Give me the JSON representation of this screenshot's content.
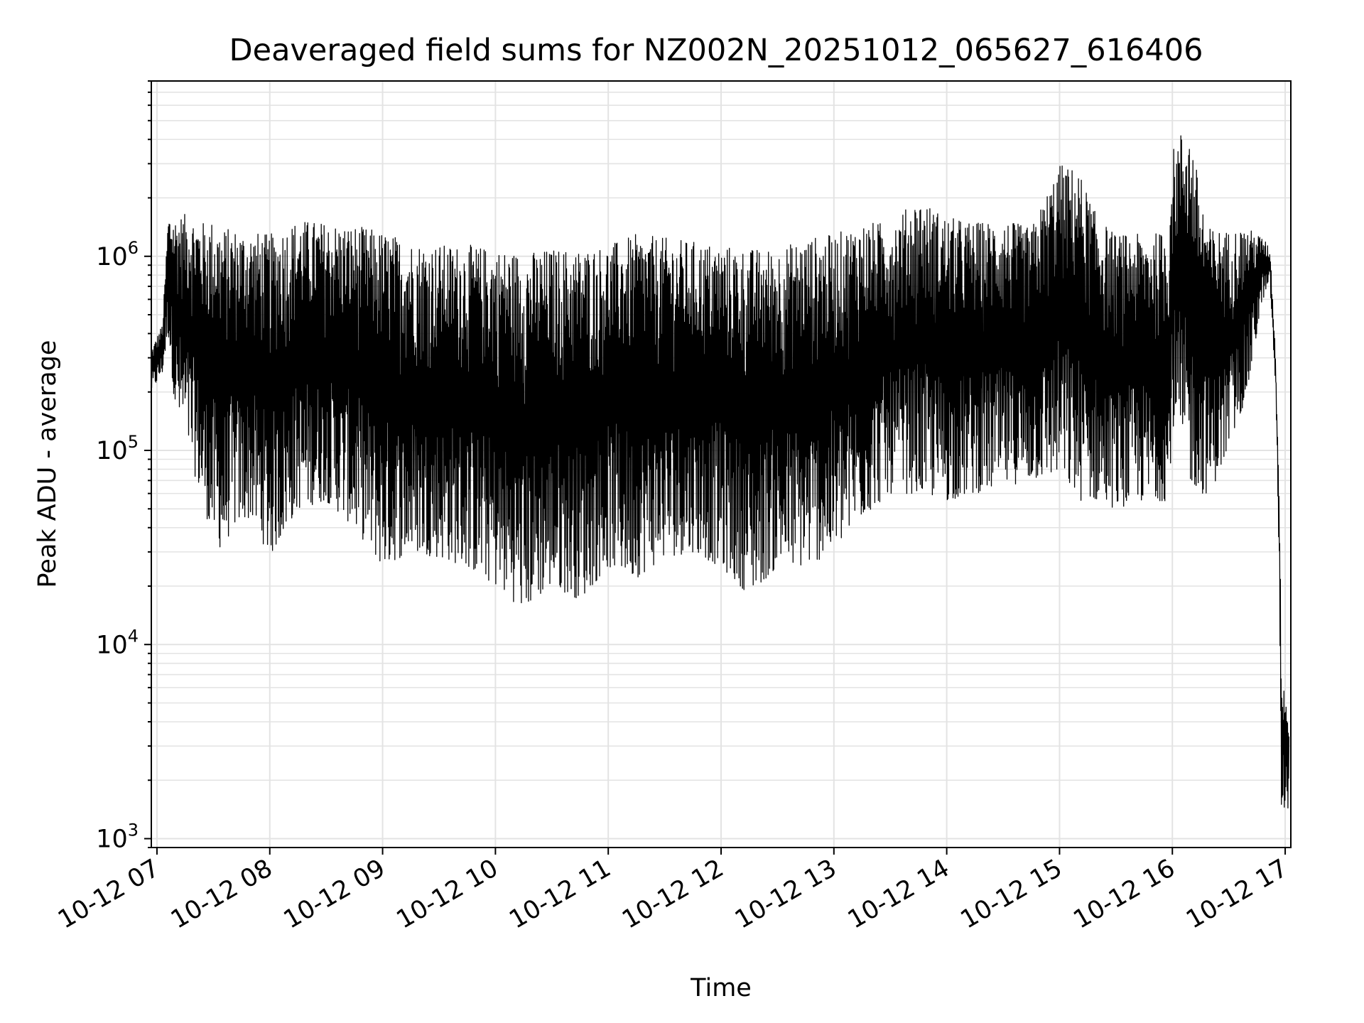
{
  "chart_data": {
    "type": "line",
    "title": "Deaveraged field sums for NZ002N_20251012_065627_616406",
    "xlabel": "Time",
    "ylabel": "Peak ADU - average",
    "yscale": "log",
    "ylim": [
      900,
      8000000
    ],
    "xlim": [
      "2025-10-12 06:57",
      "2025-10-12 17:03"
    ],
    "grid": true,
    "line_color": "#000000",
    "x_tick_labels": [
      "10-12 07",
      "10-12 08",
      "10-12 09",
      "10-12 10",
      "10-12 11",
      "10-12 12",
      "10-12 13",
      "10-12 14",
      "10-12 15",
      "10-12 16",
      "10-12 17"
    ],
    "x_tick_values": [
      "2025-10-12 07:00",
      "2025-10-12 08:00",
      "2025-10-12 09:00",
      "2025-10-12 10:00",
      "2025-10-12 11:00",
      "2025-10-12 12:00",
      "2025-10-12 13:00",
      "2025-10-12 14:00",
      "2025-10-12 15:00",
      "2025-10-12 16:00",
      "2025-10-12 17:00"
    ],
    "y_tick_values": [
      1000,
      10000,
      100000,
      1000000
    ],
    "y_tick_bases": [
      "10",
      "10",
      "10",
      "10"
    ],
    "y_tick_exponents": [
      "3",
      "4",
      "5",
      "6"
    ],
    "series": [
      {
        "x": [
          "2025-10-12 06:57",
          "2025-10-12 07:03",
          "2025-10-12 07:06",
          "2025-10-12 07:10",
          "2025-10-12 07:15",
          "2025-10-12 07:20",
          "2025-10-12 07:25",
          "2025-10-12 07:30",
          "2025-10-12 07:35",
          "2025-10-12 07:40",
          "2025-10-12 07:50",
          "2025-10-12 08:00",
          "2025-10-12 08:15",
          "2025-10-12 08:30",
          "2025-10-12 08:45",
          "2025-10-12 09:00",
          "2025-10-12 09:15",
          "2025-10-12 09:30",
          "2025-10-12 09:45",
          "2025-10-12 10:00",
          "2025-10-12 10:15",
          "2025-10-12 10:30",
          "2025-10-12 10:45",
          "2025-10-12 11:00",
          "2025-10-12 11:15",
          "2025-10-12 11:30",
          "2025-10-12 11:45",
          "2025-10-12 12:00",
          "2025-10-12 12:15",
          "2025-10-12 12:30",
          "2025-10-12 12:45",
          "2025-10-12 13:00",
          "2025-10-12 13:15",
          "2025-10-12 13:30",
          "2025-10-12 13:45",
          "2025-10-12 14:00",
          "2025-10-12 14:15",
          "2025-10-12 14:30",
          "2025-10-12 14:45",
          "2025-10-12 15:00",
          "2025-10-12 15:10",
          "2025-10-12 15:20",
          "2025-10-12 15:30",
          "2025-10-12 15:45",
          "2025-10-12 15:58",
          "2025-10-12 16:00",
          "2025-10-12 16:05",
          "2025-10-12 16:08",
          "2025-10-12 16:12",
          "2025-10-12 16:15",
          "2025-10-12 16:20",
          "2025-10-12 16:30",
          "2025-10-12 16:40",
          "2025-10-12 16:48",
          "2025-10-12 16:52",
          "2025-10-12 16:55",
          "2025-10-12 16:57",
          "2025-10-12 16:58",
          "2025-10-12 17:00",
          "2025-10-12 17:02"
        ],
        "max": [
          330000,
          450000,
          1650000,
          1600000,
          1650000,
          1600000,
          1500000,
          1550000,
          1400000,
          1400000,
          1350000,
          1300000,
          1550000,
          1500000,
          1450000,
          1350000,
          1200000,
          1150000,
          1150000,
          1100000,
          1050000,
          1100000,
          1100000,
          1150000,
          1300000,
          1250000,
          1200000,
          1150000,
          1100000,
          1100000,
          1250000,
          1300000,
          1500000,
          1500000,
          2000000,
          1600000,
          1500000,
          1550000,
          1400000,
          3000000,
          2800000,
          1600000,
          1300000,
          1300000,
          1350000,
          3500000,
          4500000,
          5000000,
          3200000,
          2100000,
          1400000,
          1350000,
          1400000,
          1250000,
          1100000,
          300000,
          50000,
          8500,
          6000,
          4000
        ],
        "min": [
          200000,
          250000,
          400000,
          150000,
          120000,
          75000,
          50000,
          35000,
          30000,
          40000,
          45000,
          28000,
          50000,
          55000,
          40000,
          25000,
          30000,
          28000,
          25000,
          20000,
          15000,
          20000,
          17000,
          25000,
          22000,
          28000,
          30000,
          25000,
          18000,
          25000,
          25000,
          30000,
          45000,
          60000,
          60000,
          55000,
          60000,
          65000,
          70000,
          75000,
          55000,
          55000,
          50000,
          55000,
          55000,
          130000,
          90000,
          70000,
          65000,
          60000,
          60000,
          100000,
          200000,
          600000,
          700000,
          200000,
          20000,
          1300,
          1500,
          1400
        ]
      }
    ]
  }
}
